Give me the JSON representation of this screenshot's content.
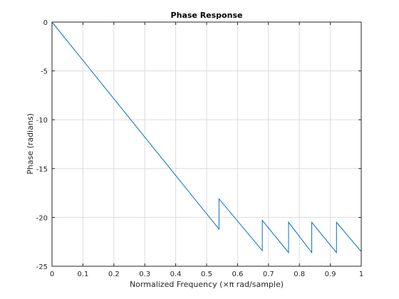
{
  "chart_data": {
    "type": "line",
    "title": "Phase Response",
    "xlabel": "Normalized Frequency  (×π rad/sample)",
    "ylabel": "Phase (radians)",
    "xlim": [
      0,
      1
    ],
    "ylim": [
      -25,
      0
    ],
    "xticks": [
      0,
      0.1,
      0.2,
      0.3,
      0.4,
      0.5,
      0.6,
      0.7,
      0.8,
      0.9,
      1
    ],
    "xtick_labels": [
      "0",
      "0.1",
      "0.2",
      "0.3",
      "0.4",
      "0.5",
      "0.6",
      "0.7",
      "0.8",
      "0.9",
      "1"
    ],
    "yticks": [
      0,
      -5,
      -10,
      -15,
      -20,
      -25
    ],
    "ytick_labels": [
      "0",
      "-5",
      "-10",
      "-15",
      "-20",
      "-25"
    ],
    "grid": true,
    "series": [
      {
        "color": "#0072bd",
        "x": [
          0,
          0.54,
          0.54,
          0.68,
          0.68,
          0.765,
          0.765,
          0.84,
          0.84,
          0.92,
          0.92,
          1.0
        ],
        "y": [
          0,
          -21.2,
          -18.1,
          -23.4,
          -20.3,
          -23.6,
          -20.5,
          -23.6,
          -20.5,
          -23.6,
          -20.5,
          -23.5
        ]
      }
    ]
  }
}
